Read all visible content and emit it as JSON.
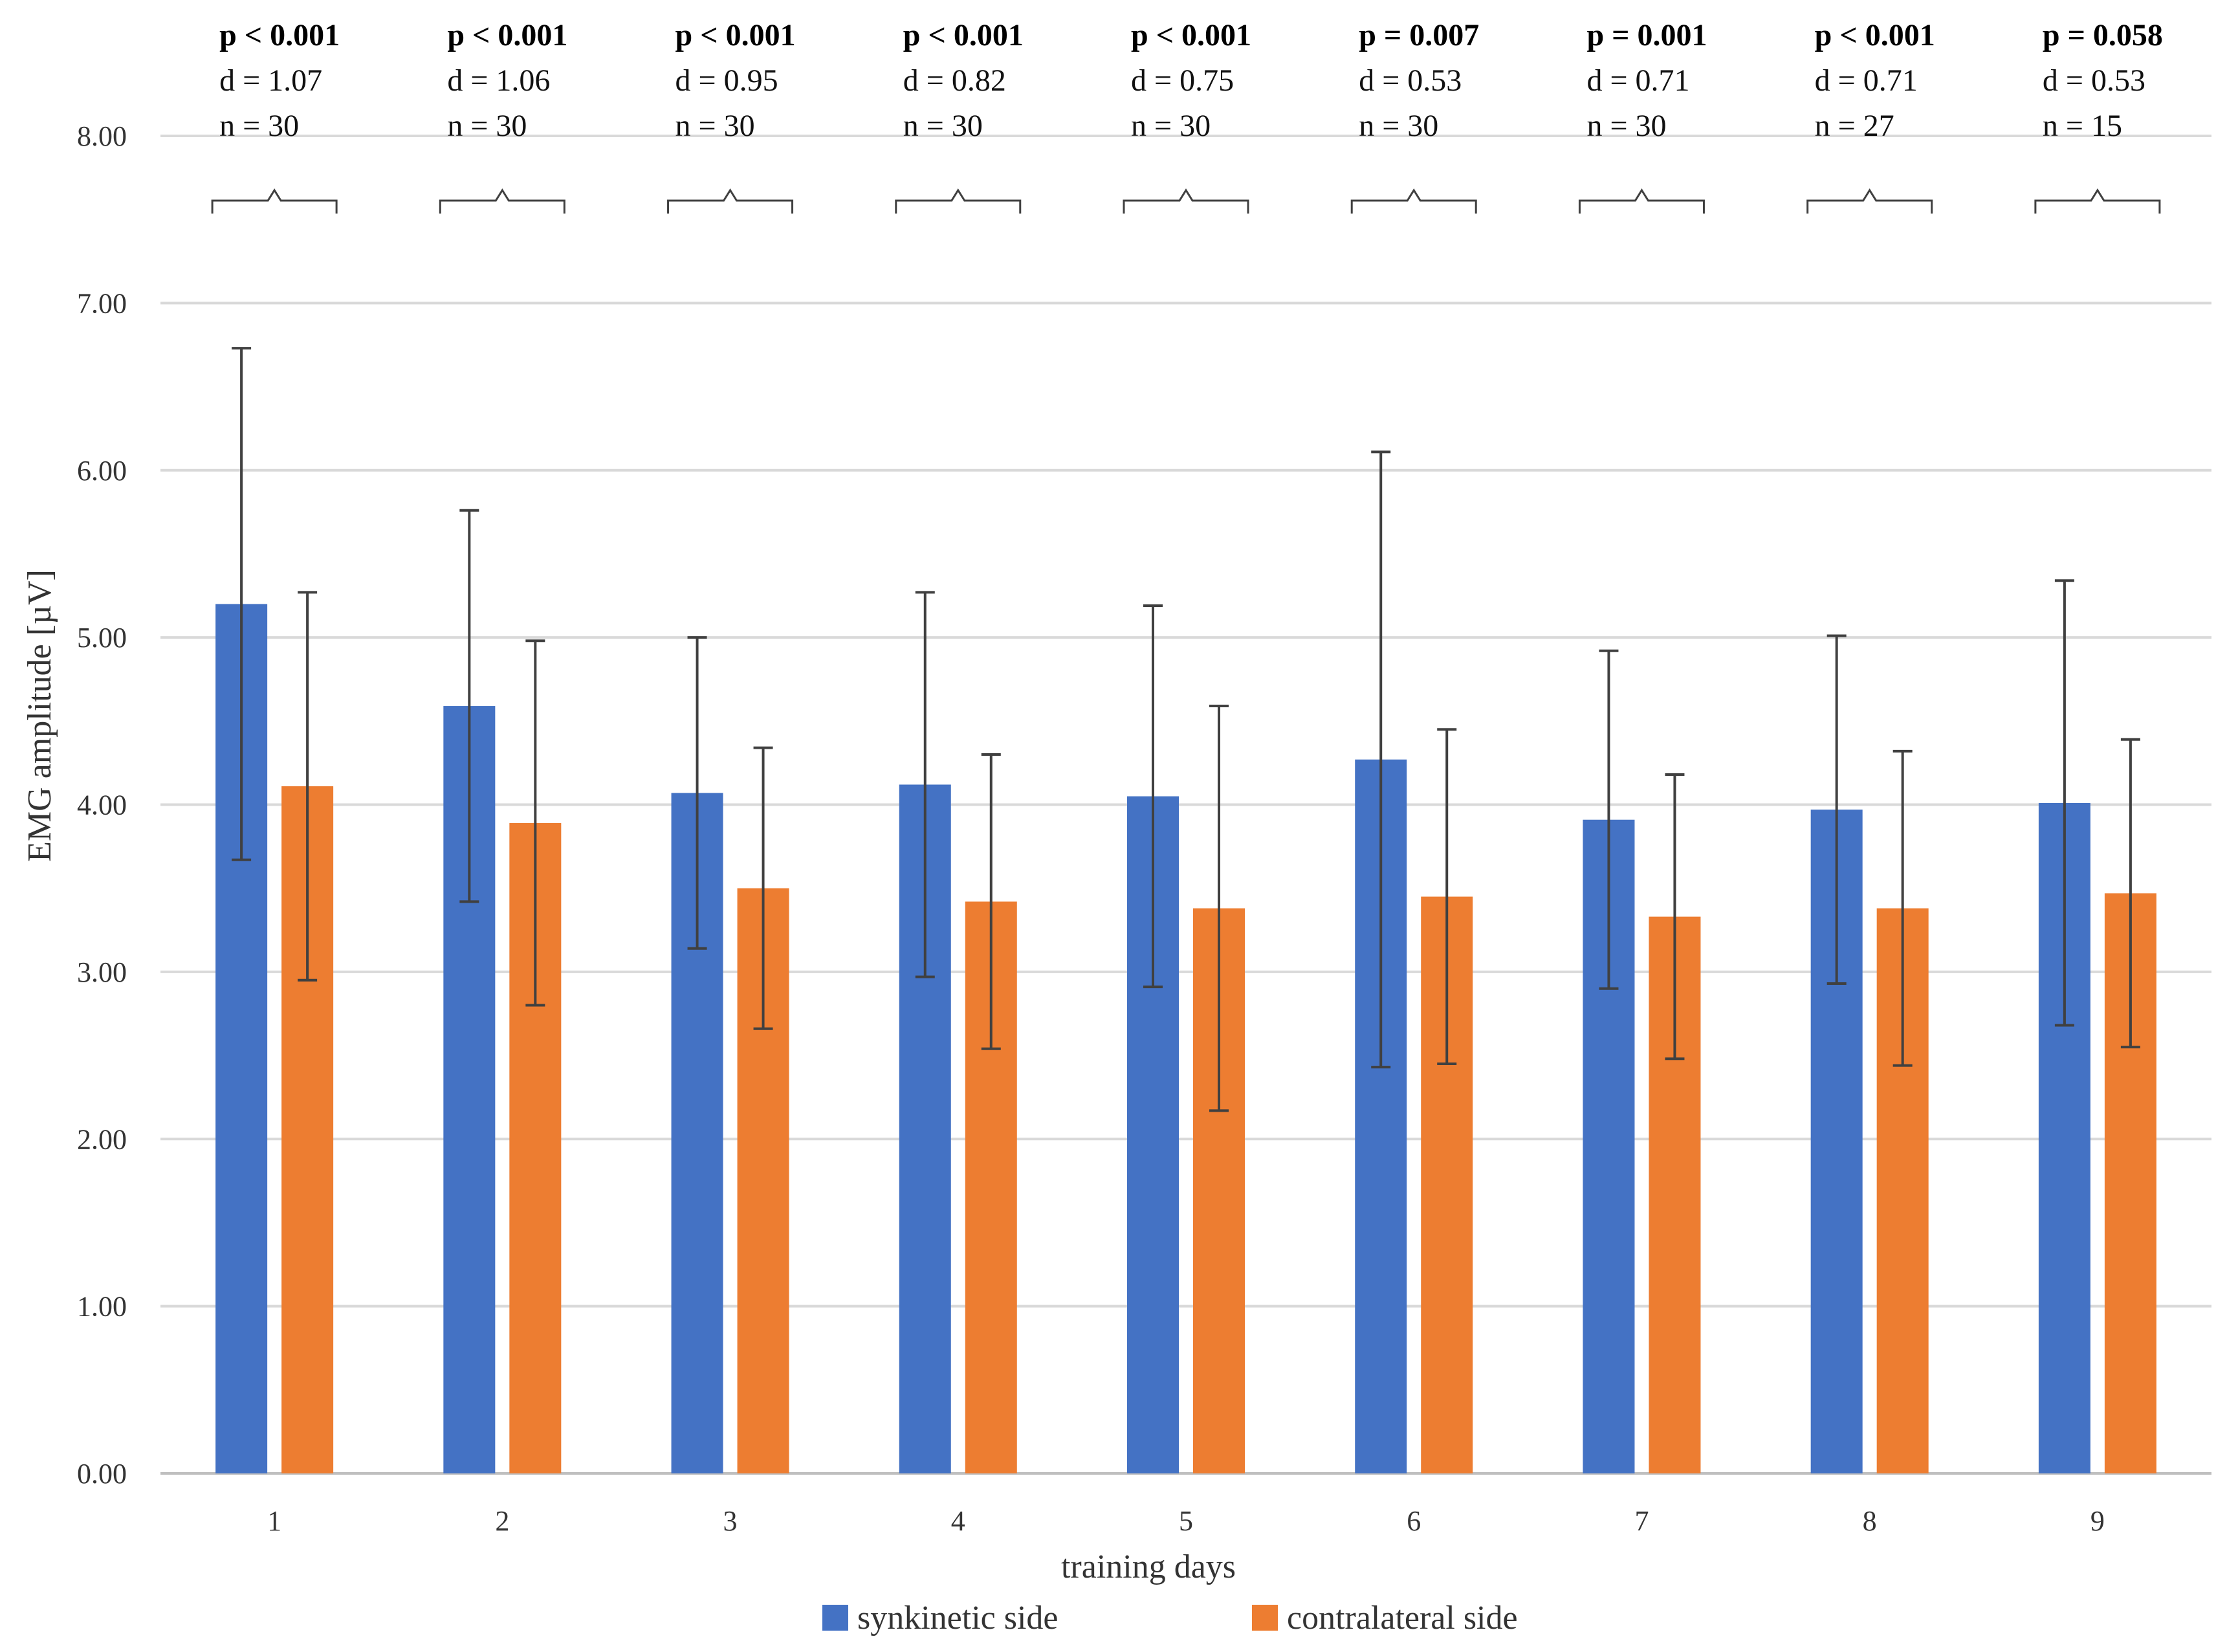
{
  "chart_data": {
    "type": "bar",
    "title": "",
    "xlabel": "training days",
    "ylabel": "EMG amplitude [µV]",
    "ylim": [
      0,
      8
    ],
    "yticks": [
      "0.00",
      "1.00",
      "2.00",
      "3.00",
      "4.00",
      "5.00",
      "6.00",
      "7.00",
      "8.00"
    ],
    "grid": true,
    "legend_position": "bottom",
    "categories": [
      "1",
      "2",
      "3",
      "4",
      "5",
      "6",
      "7",
      "8",
      "9"
    ],
    "series": [
      {
        "name": "synkinetic side",
        "color": "#4472c4",
        "values": [
          5.2,
          4.59,
          4.07,
          4.12,
          4.05,
          4.27,
          3.91,
          3.97,
          4.01
        ],
        "error": [
          1.53,
          1.17,
          0.93,
          1.15,
          1.14,
          1.84,
          1.01,
          1.04,
          1.33
        ]
      },
      {
        "name": "contralateral side",
        "color": "#ed7d31",
        "values": [
          4.11,
          3.89,
          3.5,
          3.42,
          3.38,
          3.45,
          3.33,
          3.38,
          3.47
        ],
        "error": [
          1.16,
          1.09,
          0.84,
          0.88,
          1.21,
          1.0,
          0.85,
          0.94,
          0.92
        ]
      }
    ],
    "annotations": [
      {
        "p": "p < 0.001",
        "d": "d = 1.07",
        "n": "n = 30"
      },
      {
        "p": "p < 0.001",
        "d": "d = 1.06",
        "n": "n = 30"
      },
      {
        "p": "p < 0.001",
        "d": "d = 0.95",
        "n": "n = 30"
      },
      {
        "p": "p < 0.001",
        "d": "d = 0.82",
        "n": "n = 30"
      },
      {
        "p": "p < 0.001",
        "d": "d = 0.75",
        "n": "n = 30"
      },
      {
        "p": "p = 0.007",
        "d": "d = 0.53",
        "n": "n = 30"
      },
      {
        "p": "p = 0.001",
        "d": "d = 0.71",
        "n": "n = 30"
      },
      {
        "p": "p < 0.001",
        "d": "d = 0.71",
        "n": "n = 27"
      },
      {
        "p": "p = 0.058",
        "d": "d = 0.53",
        "n": "n = 15"
      }
    ]
  }
}
